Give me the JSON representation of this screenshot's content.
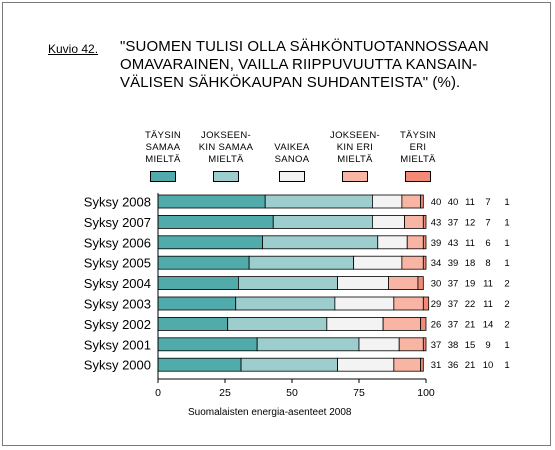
{
  "figure_label": "Kuvio 42.",
  "chart_data": {
    "type": "bar",
    "orientation": "horizontal",
    "stacked": true,
    "title": "\"SUOMEN TULISI OLLA SÄHKÖNTUOTANNOSSAAN\nOMAVARAINEN, VAILLA RIIPPUVUUTTA KANSAIN-\nVÄLISEN SÄHKÖKAUPAN SUHDANTEISTA\" (%).",
    "categories": [
      "Syksy 2008",
      "Syksy 2007",
      "Syksy 2006",
      "Syksy 2005",
      "Syksy 2004",
      "Syksy 2003",
      "Syksy 2002",
      "Syksy 2001",
      "Syksy 2000"
    ],
    "series": [
      {
        "name": "TÄYSIN\nSAMAA\nMIELTÄ",
        "color": "#52abab",
        "values": [
          40,
          43,
          39,
          34,
          30,
          29,
          26,
          37,
          31
        ]
      },
      {
        "name": "JOKSEEN-\nKIN SAMAA\nMIELTÄ",
        "color": "#9dcdcd",
        "values": [
          40,
          37,
          43,
          39,
          37,
          37,
          37,
          38,
          36
        ]
      },
      {
        "name": "VAIKEA\nSANOA",
        "color": "#f3f3f3",
        "values": [
          11,
          12,
          11,
          18,
          19,
          22,
          21,
          15,
          21
        ]
      },
      {
        "name": "JOKSEEN-\nKIN ERI\nMIELTÄ",
        "color": "#f9b5a3",
        "values": [
          7,
          7,
          6,
          8,
          11,
          11,
          14,
          9,
          10
        ]
      },
      {
        "name": "TÄYSIN\nERI\nMIELTÄ",
        "color": "#f28a77",
        "values": [
          1,
          1,
          1,
          1,
          2,
          2,
          2,
          1,
          1
        ]
      }
    ],
    "xlim": [
      0,
      100
    ],
    "xticks": [
      0,
      25,
      50,
      75,
      100
    ],
    "value_labels": true,
    "grid": false,
    "legend": "top"
  },
  "source": "Suomalaisten energia-asenteet 2008"
}
